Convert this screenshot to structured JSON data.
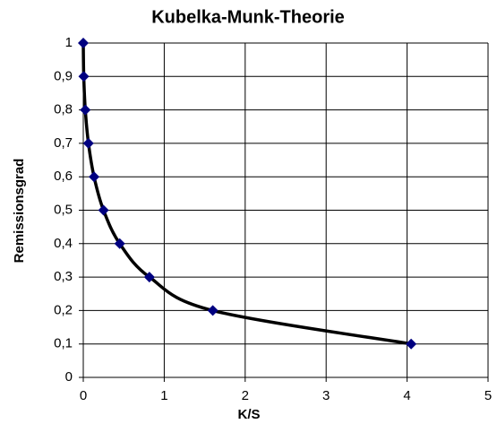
{
  "chart_data": {
    "type": "scatter",
    "title": "Kubelka-Munk-Theorie",
    "x_label": "K/S",
    "y_label": "Remissionsgrad",
    "x": [
      0,
      0.006,
      0.025,
      0.064,
      0.133,
      0.25,
      0.45,
      0.817,
      1.6,
      4.05
    ],
    "series": [
      {
        "color": "#000080",
        "line_color": "#000000",
        "values": [
          1,
          0.9,
          0.8,
          0.7,
          0.6,
          0.5,
          0.4,
          0.3,
          0.2,
          0.1
        ]
      }
    ],
    "xlim": [
      0,
      5
    ],
    "xticks": [
      0,
      1,
      2,
      3,
      4,
      5
    ],
    "ylim": [
      0,
      1
    ],
    "yticks": [
      0,
      {
        "value": 0.1,
        "label": "0,1"
      },
      {
        "value": 0.2,
        "label": "0,2"
      },
      {
        "value": 0.3,
        "label": "0,3"
      },
      {
        "value": 0.4,
        "label": "0,4"
      },
      {
        "value": 0.5,
        "label": "0,5"
      },
      {
        "value": 0.6,
        "label": "0,6"
      },
      {
        "value": 0.7,
        "label": "0,7"
      },
      {
        "value": 0.8,
        "label": "0,8"
      },
      {
        "value": 0.9,
        "label": "0,9"
      },
      1
    ],
    "grid": true
  }
}
